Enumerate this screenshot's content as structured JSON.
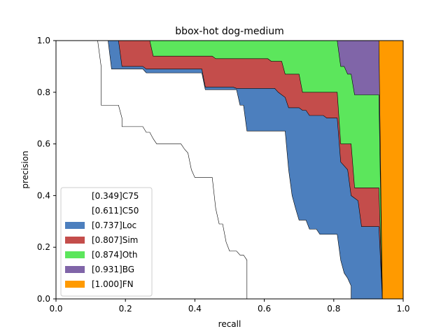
{
  "chart_data": {
    "type": "area",
    "title": "bbox-hot dog-medium",
    "xlabel": "recall",
    "ylabel": "precision",
    "xlim": [
      0.0,
      1.0
    ],
    "ylim": [
      0.0,
      1.0
    ],
    "xticks": [
      "0.0",
      "0.2",
      "0.4",
      "0.6",
      "0.8",
      "1.0"
    ],
    "yticks": [
      "0.0",
      "0.2",
      "0.4",
      "0.6",
      "0.8",
      "1.0"
    ],
    "grid": false,
    "legend_position": "lower-left",
    "series": [
      {
        "name": "[0.349]C75",
        "color": "#ffffff",
        "x": [
          0,
          0.12,
          0.13,
          0.13,
          0.18,
          0.19,
          0.19,
          0.25,
          0.26,
          0.27,
          0.28,
          0.29,
          0.36,
          0.37,
          0.38,
          0.39,
          0.4,
          0.45,
          0.46,
          0.47,
          0.48,
          0.49,
          0.5,
          0.52,
          0.53,
          0.54,
          0.55,
          0.55
        ],
        "y": [
          1.0,
          1.0,
          0.9,
          0.75,
          0.75,
          0.7,
          0.667,
          0.667,
          0.645,
          0.645,
          0.62,
          0.6,
          0.6,
          0.58,
          0.565,
          0.5,
          0.47,
          0.47,
          0.35,
          0.29,
          0.29,
          0.22,
          0.185,
          0.185,
          0.17,
          0.17,
          0.15,
          0.0
        ]
      },
      {
        "name": "[0.611]C50",
        "color": "#ffffff",
        "x": [
          0,
          0.15,
          0.16,
          0.25,
          0.26,
          0.42,
          0.43,
          0.52,
          0.53,
          0.54,
          0.55,
          0.66,
          0.67,
          0.68,
          0.69,
          0.7,
          0.72,
          0.73,
          0.75,
          0.76,
          0.78,
          0.81,
          0.82,
          0.83,
          0.84,
          0.85,
          0.85
        ],
        "y": [
          1.0,
          1.0,
          0.89,
          0.89,
          0.875,
          0.875,
          0.81,
          0.81,
          0.75,
          0.75,
          0.65,
          0.65,
          0.5,
          0.4,
          0.35,
          0.305,
          0.305,
          0.27,
          0.27,
          0.25,
          0.25,
          0.25,
          0.15,
          0.1,
          0.08,
          0.05,
          0.0
        ]
      },
      {
        "name": "[0.737]Loc",
        "color": "#4c7fbe",
        "x": [
          0,
          0.18,
          0.19,
          0.25,
          0.26,
          0.42,
          0.43,
          0.51,
          0.52,
          0.63,
          0.64,
          0.66,
          0.67,
          0.7,
          0.71,
          0.72,
          0.73,
          0.77,
          0.78,
          0.81,
          0.82,
          0.84,
          0.85,
          0.87,
          0.88,
          0.93,
          0.94
        ],
        "y": [
          1.0,
          1.0,
          0.9,
          0.9,
          0.89,
          0.89,
          0.82,
          0.82,
          0.815,
          0.815,
          0.8,
          0.78,
          0.74,
          0.74,
          0.73,
          0.73,
          0.71,
          0.71,
          0.7,
          0.7,
          0.53,
          0.5,
          0.4,
          0.38,
          0.28,
          0.28,
          0.0
        ]
      },
      {
        "name": "[0.807]Sim",
        "color": "#c44d4b",
        "x": [
          0,
          0.27,
          0.28,
          0.45,
          0.46,
          0.61,
          0.62,
          0.65,
          0.66,
          0.7,
          0.71,
          0.81,
          0.82,
          0.85,
          0.86,
          0.93,
          0.94
        ],
        "y": [
          1.0,
          1.0,
          0.94,
          0.94,
          0.93,
          0.93,
          0.92,
          0.92,
          0.87,
          0.87,
          0.8,
          0.8,
          0.6,
          0.6,
          0.43,
          0.43,
          0.0
        ]
      },
      {
        "name": "[0.874]Oth",
        "color": "#5ce65c",
        "x": [
          0,
          0.81,
          0.82,
          0.83,
          0.84,
          0.85,
          0.86,
          0.93,
          0.94
        ],
        "y": [
          1.0,
          1.0,
          0.9,
          0.9,
          0.87,
          0.87,
          0.79,
          0.79,
          0.0
        ]
      },
      {
        "name": "[0.931]BG",
        "color": "#8065a8",
        "x": [
          0,
          0.93,
          0.94
        ],
        "y": [
          1.0,
          1.0,
          0.0
        ]
      },
      {
        "name": "[1.000]FN",
        "color": "#ff9a00",
        "x": [
          0,
          1.0,
          1.0
        ],
        "y": [
          1.0,
          1.0,
          0.0
        ]
      }
    ]
  }
}
